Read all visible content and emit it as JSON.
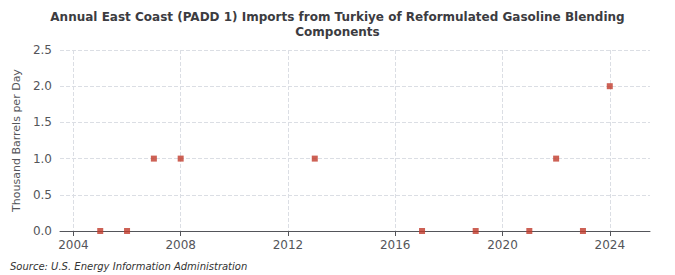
{
  "chart_data": {
    "type": "scatter",
    "title": "Annual East Coast (PADD 1) Imports from Turkiye of Reformulated Gasoline Blending\nComponents",
    "y_label": "Thousand Barrels per Day",
    "annotations": [
      "Source: U.S. Energy Information Administration"
    ],
    "x": [
      2005,
      2006,
      2007,
      2008,
      2013,
      2017,
      2019,
      2021,
      2022,
      2023,
      2024
    ],
    "values": [
      0.0,
      0.0,
      1.0,
      1.0,
      1.0,
      0.0,
      0.0,
      0.0,
      1.0,
      0.0,
      2.0
    ],
    "color": "#c0392b",
    "marker": "square",
    "xlim": [
      2003.5,
      2025.5
    ],
    "xticks": [
      2004,
      2008,
      2012,
      2016,
      2020,
      2024
    ],
    "ylim": [
      0.0,
      2.5
    ],
    "yticks": [
      {
        "value": 0.0,
        "label": "0.0"
      },
      0.5,
      {
        "value": 1.0,
        "label": "1.0"
      },
      1.5,
      {
        "value": 2.0,
        "label": "2.0"
      },
      2.5
    ],
    "grid": true
  }
}
